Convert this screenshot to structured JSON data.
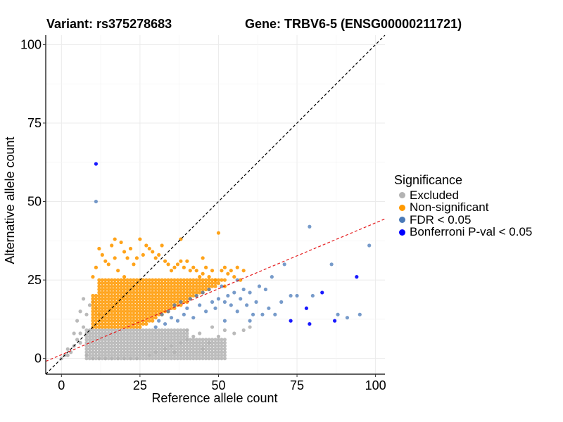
{
  "chart_data": {
    "type": "scatter",
    "title_variant": "Variant: rs375278683",
    "title_gene": "Gene: TRBV6-5 (ENSG00000211721)",
    "xlabel": "Reference allele count",
    "ylabel": "Alternative allele count",
    "xlim": [
      -5,
      103
    ],
    "ylim": [
      -5,
      103
    ],
    "x_ticks": [
      0,
      25,
      50,
      75,
      100
    ],
    "y_ticks": [
      0,
      25,
      50,
      75,
      100
    ],
    "x_tick_labels": [
      "0",
      "25",
      "50",
      "75",
      "100"
    ],
    "y_tick_labels": [
      "0",
      "25",
      "50",
      "75",
      "100"
    ],
    "reference_lines": [
      {
        "name": "identity",
        "slope": 1,
        "intercept": 0,
        "color": "#000000",
        "style": "dashed"
      },
      {
        "name": "fitted-ratio",
        "slope": 0.42,
        "intercept": 1.2,
        "color": "#e41a1c",
        "style": "dashed"
      }
    ],
    "legend": {
      "title": "Significance",
      "placement": "right",
      "entries": [
        {
          "label": "Excluded",
          "color": "#b3b3b3"
        },
        {
          "label": "Non-significant",
          "color": "#ff9900"
        },
        {
          "label": "FDR < 0.05",
          "color": "#4a7ab8"
        },
        {
          "label": "Bonferroni P-val < 0.05",
          "color": "#0000ff"
        }
      ]
    },
    "series": [
      {
        "name": "Excluded",
        "color": "#b3b3b3",
        "points": [
          [
            0,
            0
          ],
          [
            1,
            1
          ],
          [
            2,
            1
          ],
          [
            2,
            3
          ],
          [
            3,
            2
          ],
          [
            4,
            4
          ],
          [
            4,
            8
          ],
          [
            5,
            6
          ],
          [
            5,
            12
          ],
          [
            6,
            8
          ],
          [
            6,
            15
          ],
          [
            7,
            10
          ],
          [
            7,
            19
          ],
          [
            8,
            14
          ],
          [
            9,
            17
          ],
          [
            10,
            18
          ],
          [
            11,
            16
          ],
          [
            12,
            14
          ],
          [
            6,
            5
          ],
          [
            8,
            1
          ],
          [
            10,
            0
          ],
          [
            12,
            0
          ],
          [
            14,
            0
          ],
          [
            16,
            0
          ],
          [
            18,
            0
          ],
          [
            20,
            0
          ],
          [
            22,
            0
          ],
          [
            24,
            0
          ],
          [
            28,
            1
          ],
          [
            30,
            2
          ],
          [
            33,
            3
          ],
          [
            35,
            4
          ],
          [
            38,
            5
          ],
          [
            40,
            6
          ],
          [
            42,
            7
          ],
          [
            44,
            8
          ],
          [
            47,
            5
          ],
          [
            50,
            7
          ],
          [
            52,
            9
          ],
          [
            55,
            8
          ],
          [
            58,
            9
          ],
          [
            60,
            10
          ],
          [
            36,
            2
          ],
          [
            45,
            3
          ],
          [
            48,
            10
          ],
          [
            40,
            9
          ]
        ],
        "grid_region": {
          "x": [
            8,
            52
          ],
          "y_low": 0,
          "y_high": 9
        }
      },
      {
        "name": "Non-significant",
        "color": "#ff9900",
        "points": [
          [
            10,
            26
          ],
          [
            11,
            29
          ],
          [
            12,
            35
          ],
          [
            13,
            33
          ],
          [
            14,
            31
          ],
          [
            15,
            30
          ],
          [
            16,
            36
          ],
          [
            17,
            38
          ],
          [
            17,
            32
          ],
          [
            18,
            28
          ],
          [
            19,
            37
          ],
          [
            20,
            26
          ],
          [
            20,
            34
          ],
          [
            21,
            32
          ],
          [
            22,
            35
          ],
          [
            23,
            30
          ],
          [
            24,
            32
          ],
          [
            25,
            38
          ],
          [
            26,
            33
          ],
          [
            27,
            36
          ],
          [
            28,
            35
          ],
          [
            29,
            34
          ],
          [
            30,
            32
          ],
          [
            31,
            33
          ],
          [
            32,
            36
          ],
          [
            33,
            31
          ],
          [
            34,
            30
          ],
          [
            35,
            28
          ],
          [
            36,
            29
          ],
          [
            37,
            30
          ],
          [
            38,
            31
          ],
          [
            39,
            29
          ],
          [
            40,
            31
          ],
          [
            41,
            28
          ],
          [
            42,
            29
          ],
          [
            43,
            28
          ],
          [
            44,
            26
          ],
          [
            45,
            27
          ],
          [
            46,
            29
          ],
          [
            47,
            26
          ],
          [
            48,
            28
          ],
          [
            49,
            25
          ],
          [
            50,
            40
          ],
          [
            51,
            28
          ],
          [
            52,
            29
          ],
          [
            53,
            27
          ],
          [
            54,
            28
          ],
          [
            55,
            26
          ],
          [
            56,
            29
          ],
          [
            57,
            25
          ],
          [
            58,
            28
          ],
          [
            38,
            38
          ],
          [
            45,
            32
          ],
          [
            52,
            23
          ]
        ],
        "grid_region": {
          "x": [
            10,
            52
          ],
          "y_low": 10,
          "y_high": 25
        }
      },
      {
        "name": "FDR < 0.05",
        "color": "#4a7ab8",
        "points": [
          [
            30,
            10
          ],
          [
            31,
            12
          ],
          [
            32,
            14
          ],
          [
            33,
            11
          ],
          [
            34,
            15
          ],
          [
            35,
            13
          ],
          [
            36,
            17
          ],
          [
            37,
            12
          ],
          [
            38,
            18
          ],
          [
            39,
            14
          ],
          [
            40,
            16
          ],
          [
            41,
            19
          ],
          [
            42,
            13
          ],
          [
            43,
            20
          ],
          [
            44,
            17
          ],
          [
            45,
            21
          ],
          [
            46,
            15
          ],
          [
            47,
            22
          ],
          [
            48,
            18
          ],
          [
            49,
            16
          ],
          [
            50,
            19
          ],
          [
            51,
            23
          ],
          [
            52,
            18
          ],
          [
            53,
            20
          ],
          [
            54,
            17
          ],
          [
            55,
            21
          ],
          [
            56,
            15
          ],
          [
            57,
            19
          ],
          [
            58,
            22
          ],
          [
            59,
            17
          ],
          [
            60,
            21
          ],
          [
            61,
            14
          ],
          [
            62,
            18
          ],
          [
            63,
            23
          ],
          [
            64,
            14
          ],
          [
            66,
            16
          ],
          [
            68,
            14
          ],
          [
            70,
            18
          ],
          [
            71,
            30
          ],
          [
            73,
            20
          ],
          [
            75,
            20
          ],
          [
            79,
            42
          ],
          [
            80,
            20
          ],
          [
            86,
            30
          ],
          [
            88,
            14
          ],
          [
            91,
            13
          ],
          [
            95,
            14
          ],
          [
            98,
            36
          ],
          [
            11,
            50
          ],
          [
            56,
            25
          ],
          [
            60,
            12
          ],
          [
            52,
            12
          ],
          [
            65,
            22
          ],
          [
            67,
            26
          ]
        ]
      },
      {
        "name": "Bonferroni P-val < 0.05",
        "color": "#0000ff",
        "points": [
          [
            11,
            62
          ],
          [
            73,
            12
          ],
          [
            78,
            16
          ],
          [
            79,
            11
          ],
          [
            83,
            21
          ],
          [
            87,
            12
          ],
          [
            94,
            26
          ]
        ]
      }
    ]
  }
}
